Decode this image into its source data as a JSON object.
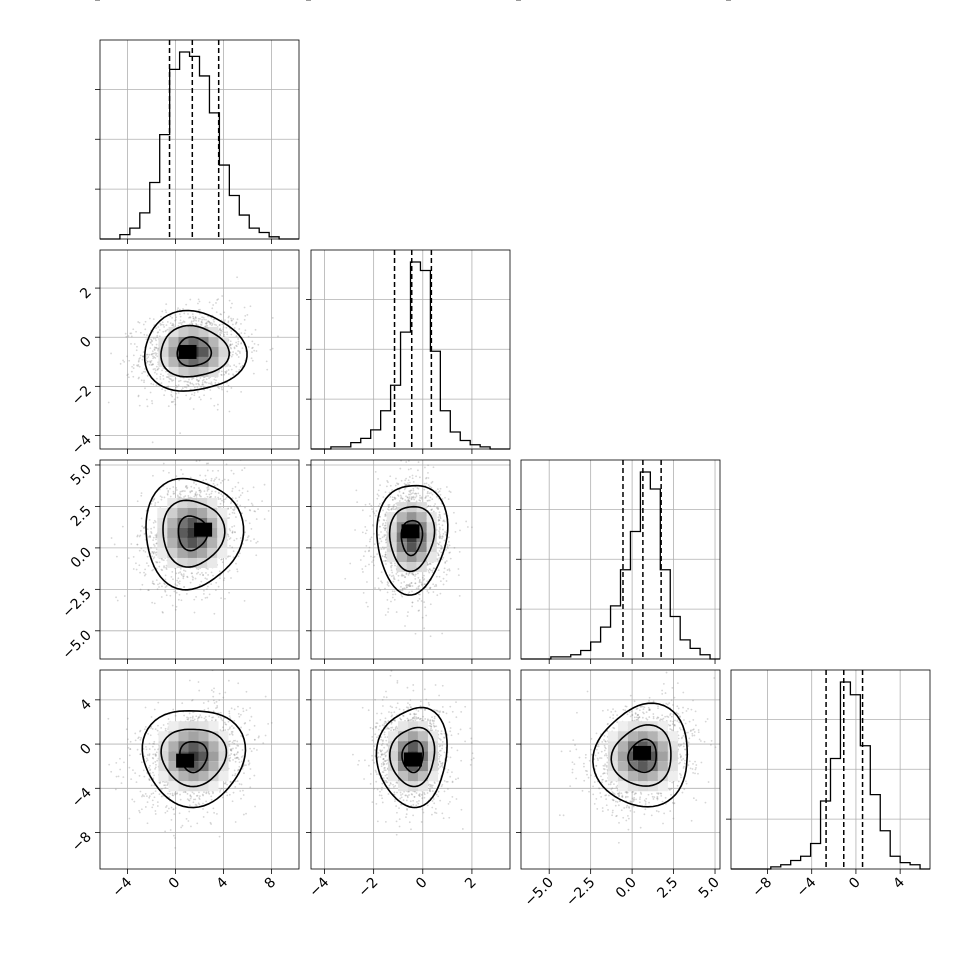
{
  "chart_data": {
    "type": "corner",
    "title": "",
    "grid": true,
    "n_params": 4,
    "param_labels": [
      "",
      "",
      "",
      ""
    ],
    "ranges": [
      [
        -6.3,
        10.3
      ],
      [
        -4.55,
        3.55
      ],
      [
        -6.7,
        5.3
      ],
      [
        -11.3,
        6.7
      ]
    ],
    "ticks": [
      {
        "values": [
          -4,
          0,
          4,
          8
        ],
        "labels": [
          "−4",
          "0",
          "4",
          "8"
        ]
      },
      {
        "values": [
          -4,
          -2,
          0,
          2
        ],
        "labels": [
          "−4",
          "−2",
          "0",
          "2"
        ]
      },
      {
        "values": [
          -5,
          -2.5,
          0,
          2.5,
          5
        ],
        "labels": [
          "−5.0",
          "−2.5",
          "0.0",
          "2.5",
          "5.0"
        ]
      },
      {
        "values": [
          -8,
          -4,
          0,
          4
        ],
        "labels": [
          "−8",
          "−4",
          "0",
          "4"
        ]
      }
    ],
    "quantiles": [
      [
        -0.5,
        1.4,
        3.6
      ],
      [
        -1.15,
        -0.45,
        0.35
      ],
      [
        -0.55,
        0.65,
        1.75
      ],
      [
        -2.7,
        -1.1,
        0.6
      ]
    ],
    "histograms": [
      {
        "bin_edges": [
          -6.3,
          -5.47,
          -4.64,
          -3.81,
          -2.98,
          -2.15,
          -1.32,
          -0.49,
          0.34,
          1.17,
          2.0,
          2.83,
          3.66,
          4.49,
          5.32,
          6.15,
          6.98,
          7.81,
          8.64,
          9.47,
          10.3
        ],
        "counts": [
          0,
          0,
          2,
          5,
          12,
          26,
          48,
          78,
          86,
          84,
          75,
          58,
          34,
          20,
          11,
          5,
          3,
          1,
          0,
          0
        ]
      },
      {
        "bin_edges": [
          -4.55,
          -4.145,
          -3.74,
          -3.335,
          -2.93,
          -2.525,
          -2.12,
          -1.715,
          -1.31,
          -0.905,
          -0.5,
          -0.095,
          0.31,
          0.715,
          1.12,
          1.525,
          1.93,
          2.335,
          2.74,
          3.145,
          3.55
        ],
        "counts": [
          0,
          0,
          1,
          1,
          3,
          5,
          9,
          18,
          30,
          55,
          88,
          84,
          46,
          18,
          8,
          4,
          2,
          1,
          0,
          0
        ]
      },
      {
        "bin_edges": [
          -6.7,
          -6.1,
          -5.5,
          -4.9,
          -4.3,
          -3.7,
          -3.1,
          -2.5,
          -1.9,
          -1.3,
          -0.7,
          -0.1,
          0.5,
          1.1,
          1.7,
          2.3,
          2.9,
          3.5,
          4.1,
          4.7,
          5.3
        ],
        "counts": [
          0,
          0,
          0,
          1,
          1,
          2,
          4,
          8,
          15,
          25,
          42,
          60,
          88,
          80,
          42,
          20,
          9,
          5,
          2,
          0
        ]
      },
      {
        "bin_edges": [
          -11.3,
          -10.4,
          -9.5,
          -8.6,
          -7.7,
          -6.8,
          -5.9,
          -5.0,
          -4.1,
          -3.2,
          -2.3,
          -1.4,
          -0.5,
          0.4,
          1.3,
          2.2,
          3.1,
          4.0,
          4.9,
          5.8,
          6.7
        ],
        "counts": [
          0,
          0,
          0,
          0,
          1,
          2,
          4,
          6,
          12,
          32,
          52,
          88,
          82,
          58,
          35,
          18,
          6,
          3,
          2,
          0
        ]
      }
    ],
    "pairs": [
      {
        "row": 1,
        "col": 0,
        "center": [
          1.5,
          -0.6
        ],
        "sx": 2.2,
        "sy": 0.85,
        "rho": 0.1,
        "contours": [
          [
            1.0,
            0.8
          ],
          [
            2.0,
            1.4
          ],
          [
            3.0,
            2.2
          ]
        ],
        "peak": [
          1.0,
          -0.6
        ]
      },
      {
        "row": 2,
        "col": 0,
        "center": [
          1.4,
          0.9
        ],
        "sx": 2.1,
        "sy": 1.7,
        "rho": 0.2,
        "contours": [
          [
            0.9,
            0.7
          ],
          [
            1.9,
            1.35
          ],
          [
            3.0,
            2.25
          ]
        ],
        "peak": [
          2.3,
          1.1
        ]
      },
      {
        "row": 2,
        "col": 1,
        "center": [
          -0.45,
          0.65
        ],
        "sx": 0.75,
        "sy": 1.7,
        "rho": 0.0,
        "contours": [
          [
            0.9,
            0.7
          ],
          [
            1.9,
            1.3
          ],
          [
            3.0,
            2.2
          ]
        ],
        "peak": [
          -0.5,
          1.0
        ]
      },
      {
        "row": 3,
        "col": 0,
        "center": [
          1.5,
          -1.1
        ],
        "sx": 2.2,
        "sy": 2.3,
        "rho": 0.2,
        "contours": [
          [
            0.8,
            0.7
          ],
          [
            1.9,
            1.3
          ],
          [
            3.0,
            2.2
          ]
        ],
        "peak": [
          0.8,
          -1.5
        ]
      },
      {
        "row": 3,
        "col": 1,
        "center": [
          -0.4,
          -1.1
        ],
        "sx": 0.75,
        "sy": 2.3,
        "rho": 0.0,
        "contours": [
          [
            0.9,
            0.7
          ],
          [
            1.9,
            1.3
          ],
          [
            3.0,
            2.2
          ]
        ],
        "peak": [
          -0.4,
          -1.4
        ]
      },
      {
        "row": 3,
        "col": 2,
        "center": [
          0.65,
          -1.1
        ],
        "sx": 1.55,
        "sy": 2.3,
        "rho": 0.25,
        "contours": [
          [
            0.9,
            0.7
          ],
          [
            1.9,
            1.3
          ],
          [
            3.0,
            2.2
          ]
        ],
        "peak": [
          0.6,
          -0.8
        ]
      }
    ]
  }
}
